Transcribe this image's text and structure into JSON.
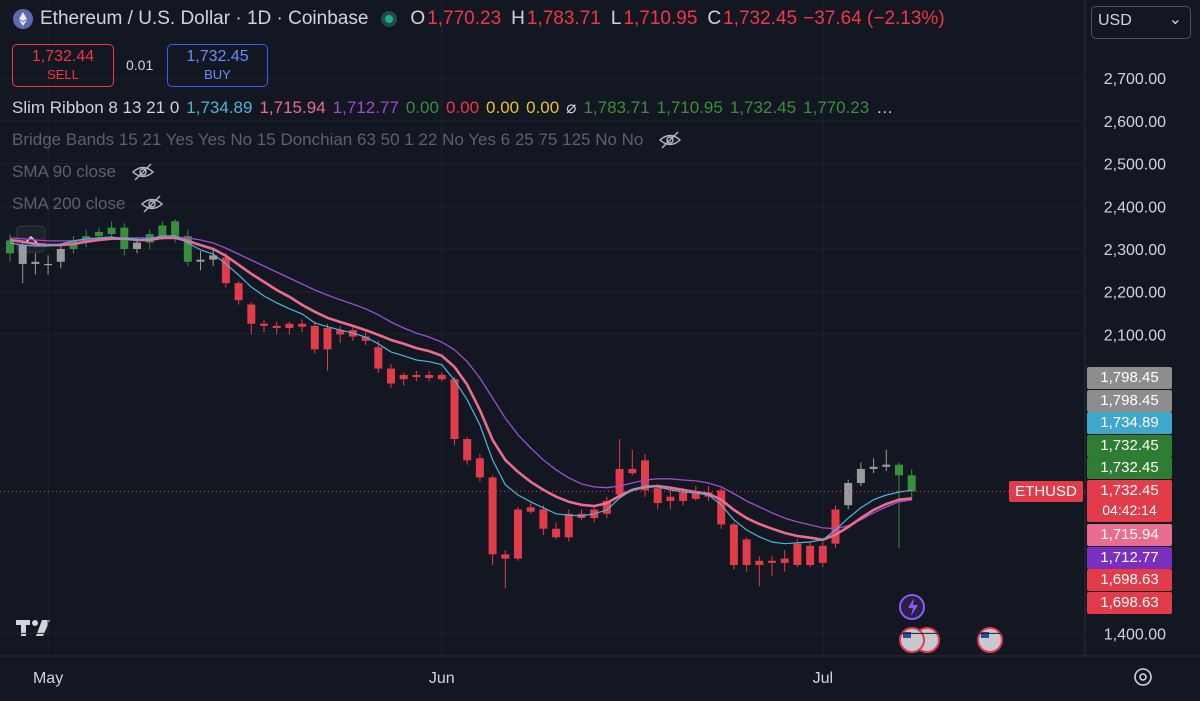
{
  "header": {
    "symbol": "Ethereum / U.S. Dollar · 1D · Coinbase",
    "ohlc": [
      {
        "key": "O",
        "value": "1,770.23"
      },
      {
        "key": "H",
        "value": "1,783.71"
      },
      {
        "key": "L",
        "value": "1,710.95"
      },
      {
        "key": "C",
        "value": "1,732.45"
      }
    ],
    "change": "−37.64 (−2.13%)",
    "currency": "USD"
  },
  "trade": {
    "sell_price": "1,732.44",
    "sell": "SELL",
    "spread": "0.01",
    "buy_price": "1,732.45",
    "buy": "BUY"
  },
  "indicators": [
    {
      "name": "Slim Ribbon 8 13 21 0",
      "hidden": false,
      "values": [
        {
          "text": "1,734.89",
          "color": "#4fb3d9"
        },
        {
          "text": "1,715.94",
          "color": "#e96d8f"
        },
        {
          "text": "1,712.77",
          "color": "#9c4dd0"
        },
        {
          "text": "0.00",
          "color": "#3c8d3c"
        },
        {
          "text": "0.00",
          "color": "#f23645"
        },
        {
          "text": "0.00",
          "color": "#e6c229"
        },
        {
          "text": "0.00",
          "color": "#e6c229"
        },
        {
          "text": "⌀",
          "color": "#d1d4dc"
        },
        {
          "text": "1,783.71",
          "color": "#3c8d3c"
        },
        {
          "text": "1,710.95",
          "color": "#3c8d3c"
        },
        {
          "text": "1,732.45",
          "color": "#3c8d3c"
        },
        {
          "text": "1,770.23",
          "color": "#3c8d3c"
        },
        {
          "text": "…",
          "color": "#d1d4dc"
        }
      ]
    },
    {
      "name": "Bridge Bands 15 21 Yes Yes No 15 Donchian 63 50 1 22 No Yes 6 25 75 125 No No",
      "hidden": true
    },
    {
      "name": "SMA 90 close",
      "hidden": true
    },
    {
      "name": "SMA 200 close",
      "hidden": true
    }
  ],
  "symbol_tag": "ETHUSD",
  "countdown": "04:42:14",
  "price_tags": [
    {
      "label": "1,798.45",
      "color": "#8d8d8d"
    },
    {
      "label": "1,798.45",
      "color": "#8d8d8d"
    },
    {
      "label": "1,734.89",
      "color": "#3fa7c9"
    },
    {
      "label": "1,732.45",
      "color": "#2e7d32"
    },
    {
      "label": "1,732.45",
      "color": "#2e7d32"
    },
    {
      "label": "1,732.45",
      "color": "#e23b4a"
    },
    {
      "label": "1,715.94",
      "color": "#e96d8f"
    },
    {
      "label": "1,712.77",
      "color": "#7b2fbf"
    },
    {
      "label": "1,698.63",
      "color": "#e23b4a"
    },
    {
      "label": "1,698.63",
      "color": "#e23b4a"
    }
  ],
  "chart_data": {
    "type": "candlestick",
    "categories": [
      null,
      null,
      null,
      "May",
      null,
      null,
      null,
      null,
      null,
      null,
      null,
      null,
      null,
      null,
      null,
      null,
      null,
      null,
      null,
      null,
      null,
      null,
      null,
      null,
      null,
      null,
      null,
      null,
      null,
      null,
      null,
      null,
      null,
      null,
      "Jun",
      null,
      null,
      null,
      null,
      null,
      null,
      null,
      null,
      null,
      null,
      null,
      null,
      null,
      null,
      null,
      null,
      null,
      null,
      null,
      null,
      null,
      null,
      null,
      null,
      null,
      null,
      null,
      null,
      null,
      "Jul",
      null,
      null,
      null,
      null,
      null,
      null,
      null
    ],
    "open": [
      2290,
      2310,
      2265,
      2265,
      2270,
      2300,
      2315,
      2330,
      2335,
      2350,
      2300,
      2315,
      2330,
      2365,
      2330,
      2270,
      2275,
      2280,
      2220,
      2170,
      2125,
      2120,
      2115,
      2125,
      2120,
      2115,
      2100,
      2110,
      2095,
      2070,
      2020,
      1995,
      2005,
      2005,
      2005,
      1995,
      1855,
      1810,
      1765,
      1585,
      1575,
      1695,
      1690,
      1645,
      1625,
      1680,
      1670,
      1680,
      1725,
      1785,
      1805,
      1740,
      1720,
      1710,
      1730,
      1730,
      1735,
      1655,
      1620,
      1570,
      1570,
      1565,
      1560,
      1560,
      1565,
      1610,
      1700,
      1752,
      1785,
      1790,
      1795,
      1770.23
    ],
    "high": [
      2335,
      2320,
      2290,
      2285,
      2310,
      2330,
      2345,
      2350,
      2365,
      2360,
      2325,
      2345,
      2365,
      2370,
      2345,
      2295,
      2300,
      2290,
      2225,
      2175,
      2135,
      2130,
      2130,
      2135,
      2130,
      2125,
      2120,
      2118,
      2105,
      2085,
      2030,
      2010,
      2015,
      2015,
      2010,
      2000,
      1860,
      1820,
      1770,
      1595,
      1695,
      1705,
      1700,
      1660,
      1690,
      1690,
      1695,
      1720,
      1855,
      1830,
      1820,
      1750,
      1735,
      1740,
      1745,
      1745,
      1740,
      1660,
      1625,
      1580,
      1580,
      1595,
      1620,
      1615,
      1615,
      1700,
      1760,
      1800,
      1810,
      1830,
      1800,
      1783.71
    ],
    "low": [
      2270,
      2220,
      2240,
      2240,
      2255,
      2290,
      2305,
      2320,
      2325,
      2285,
      2290,
      2300,
      2320,
      2315,
      2260,
      2250,
      2260,
      2210,
      2170,
      2100,
      2105,
      2100,
      2100,
      2105,
      2055,
      2015,
      2080,
      2085,
      2075,
      2010,
      1975,
      1980,
      1990,
      1990,
      1990,
      1840,
      1795,
      1755,
      1560,
      1505,
      1570,
      1680,
      1630,
      1620,
      1615,
      1665,
      1660,
      1670,
      1715,
      1770,
      1720,
      1690,
      1690,
      1700,
      1710,
      1710,
      1645,
      1550,
      1545,
      1510,
      1535,
      1545,
      1555,
      1555,
      1555,
      1600,
      1690,
      1745,
      1775,
      1780,
      1600,
      1710.95
    ],
    "close": [
      2320,
      2265,
      2270,
      2262,
      2300,
      2320,
      2330,
      2340,
      2350,
      2300,
      2315,
      2335,
      2355,
      2325,
      2270,
      2275,
      2285,
      2220,
      2180,
      2125,
      2120,
      2115,
      2125,
      2118,
      2065,
      2065,
      2110,
      2095,
      2085,
      2020,
      1985,
      2005,
      2000,
      1998,
      1995,
      1855,
      1805,
      1765,
      1585,
      1575,
      1690,
      1685,
      1645,
      1625,
      1680,
      1670,
      1690,
      1710,
      1785,
      1775,
      1735,
      1705,
      1710,
      1730,
      1715,
      1720,
      1655,
      1560,
      1560,
      1560,
      1565,
      1575,
      1610,
      1605,
      1605,
      1690,
      1752,
      1785,
      1790,
      1795,
      1770,
      1732.45
    ],
    "colors": [
      "#388e3c",
      "#9b9b9b",
      "#9b9b9b",
      "#9b9b9b",
      "#9b9b9b",
      "#388e3c",
      "#388e3c",
      "#388e3c",
      "#388e3c",
      "#388e3c",
      "#9b9b9b",
      "#388e3c",
      "#388e3c",
      "#388e3c",
      "#388e3c",
      "#9b9b9b",
      "#9b9b9b",
      "#e23b4a",
      "#e23b4a",
      "#e23b4a",
      "#e23b4a",
      "#e23b4a",
      "#e23b4a",
      "#e23b4a",
      "#e23b4a",
      "#e23b4a",
      "#e23b4a",
      "#e23b4a",
      "#e23b4a",
      "#e23b4a",
      "#e23b4a",
      "#e23b4a",
      "#e23b4a",
      "#e23b4a",
      "#e23b4a",
      "#e23b4a",
      "#e23b4a",
      "#e23b4a",
      "#e23b4a",
      "#e23b4a",
      "#e23b4a",
      "#e23b4a",
      "#e23b4a",
      "#e23b4a",
      "#e23b4a",
      "#e23b4a",
      "#e23b4a",
      "#e23b4a",
      "#e23b4a",
      "#e23b4a",
      "#e23b4a",
      "#e23b4a",
      "#e23b4a",
      "#e23b4a",
      "#e23b4a",
      "#e23b4a",
      "#e23b4a",
      "#e23b4a",
      "#e23b4a",
      "#e23b4a",
      "#e23b4a",
      "#e23b4a",
      "#e23b4a",
      "#e23b4a",
      "#e23b4a",
      "#e23b4a",
      "#9b9b9b",
      "#9b9b9b",
      "#9b9b9b",
      "#9b9b9b",
      "#388e3c",
      "#388e3c"
    ],
    "series": [
      {
        "color": "#9c4dd0",
        "width": 1.3,
        "values": [
          2326,
          2324,
          2321,
          2319,
          2319,
          2319,
          2321,
          2324,
          2326,
          2326,
          2326,
          2326,
          2328,
          2328,
          2326,
          2321,
          2314,
          2302,
          2288,
          2274,
          2260,
          2246,
          2232,
          2218,
          2204,
          2192,
          2181,
          2171,
          2160,
          2146,
          2129,
          2115,
          2103,
          2094,
          2082,
          2064,
          2036,
          1998,
          1951,
          1904,
          1865,
          1834,
          1806,
          1783,
          1764,
          1750,
          1743,
          1741,
          1745,
          1752,
          1759,
          1762,
          1762,
          1759,
          1757,
          1752,
          1743,
          1727,
          1710,
          1696,
          1682,
          1670,
          1661,
          1654,
          1647,
          1645,
          1652,
          1666,
          1682,
          1696,
          1708,
          1712.77
        ]
      },
      {
        "color": "#e96d8f",
        "width": 2.6,
        "values": [
          2321,
          2317,
          2312,
          2309,
          2309,
          2312,
          2317,
          2321,
          2324,
          2324,
          2321,
          2321,
          2326,
          2326,
          2319,
          2309,
          2300,
          2284,
          2263,
          2242,
          2223,
          2204,
          2188,
          2169,
          2153,
          2139,
          2129,
          2120,
          2110,
          2099,
          2087,
          2078,
          2068,
          2061,
          2050,
          2024,
          1982,
          1923,
          1853,
          1806,
          1778,
          1755,
          1736,
          1720,
          1708,
          1701,
          1698,
          1705,
          1722,
          1736,
          1743,
          1745,
          1741,
          1736,
          1731,
          1727,
          1713,
          1689,
          1670,
          1656,
          1645,
          1635,
          1628,
          1624,
          1619,
          1631,
          1649,
          1670,
          1689,
          1703,
          1713,
          1715.94
        ]
      },
      {
        "color": "#4fb3d9",
        "width": 1.2,
        "values": [
          2314,
          2309,
          2307,
          2307,
          2312,
          2319,
          2324,
          2326,
          2328,
          2324,
          2321,
          2324,
          2331,
          2331,
          2314,
          2298,
          2288,
          2265,
          2239,
          2211,
          2190,
          2174,
          2160,
          2148,
          2127,
          2118,
          2110,
          2103,
          2094,
          2078,
          2059,
          2050,
          2040,
          2036,
          2029,
          1993,
          1947,
          1888,
          1806,
          1748,
          1724,
          1708,
          1694,
          1680,
          1677,
          1675,
          1680,
          1689,
          1717,
          1736,
          1745,
          1743,
          1736,
          1731,
          1729,
          1724,
          1701,
          1666,
          1642,
          1626,
          1614,
          1610,
          1612,
          1614,
          1619,
          1642,
          1670,
          1694,
          1713,
          1724,
          1731,
          1734.89
        ]
      }
    ],
    "ylim": [
      1347,
      2883
    ],
    "yticks": [
      {
        "value": 2700,
        "label": "2,700.00"
      },
      {
        "value": 2600,
        "label": "2,600.00"
      },
      {
        "value": 2500,
        "label": "2,500.00"
      },
      {
        "value": 2400,
        "label": "2,400.00"
      },
      {
        "value": 2300,
        "label": "2,300.00"
      },
      {
        "value": 2200,
        "label": "2,200.00"
      },
      {
        "value": 2100,
        "label": "2,100.00"
      },
      {
        "value": 1400,
        "label": "1,400.00"
      }
    ],
    "grid": true,
    "price_line": true
  }
}
